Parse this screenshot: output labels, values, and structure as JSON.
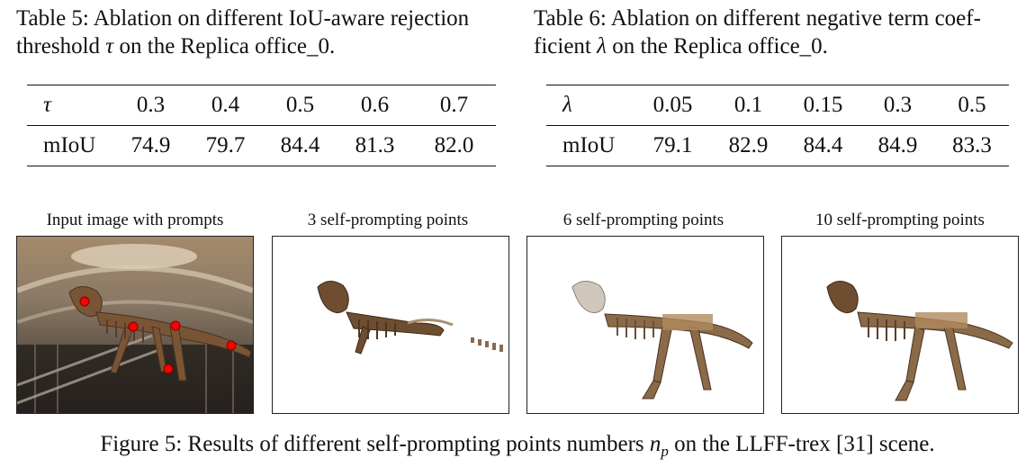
{
  "table5": {
    "caption_prefix": "Table 5: Ablation on different IoU-aware rejection",
    "caption_line2_a": "threshold ",
    "caption_symbol": "τ",
    "caption_line2_b": " on the Replica office_0.",
    "header_label": "τ",
    "headers": [
      "0.3",
      "0.4",
      "0.5",
      "0.6",
      "0.7"
    ],
    "row_label": "mIoU",
    "values": [
      "74.9",
      "79.7",
      "84.4",
      "81.3",
      "82.0"
    ]
  },
  "table6": {
    "caption_prefix": "Table 6: Ablation on different negative term coef-",
    "caption_line2_a": "ficient ",
    "caption_symbol": "λ",
    "caption_line2_b": " on the Replica office_0.",
    "header_label": "λ",
    "headers": [
      "0.05",
      "0.1",
      "0.15",
      "0.3",
      "0.5"
    ],
    "row_label": "mIoU",
    "values": [
      "79.1",
      "82.9",
      "84.4",
      "84.9",
      "83.3"
    ]
  },
  "figure": {
    "panels": [
      {
        "title": "Input image with prompts"
      },
      {
        "title": "3 self-prompting points"
      },
      {
        "title": "6 self-prompting points"
      },
      {
        "title": "10 self-prompting points"
      }
    ],
    "caption_a": "Figure 5: Results of different self-prompting points numbers ",
    "caption_symbol": "n",
    "caption_sub": "p",
    "caption_b": " on the LLFF-trex [31] scene."
  }
}
